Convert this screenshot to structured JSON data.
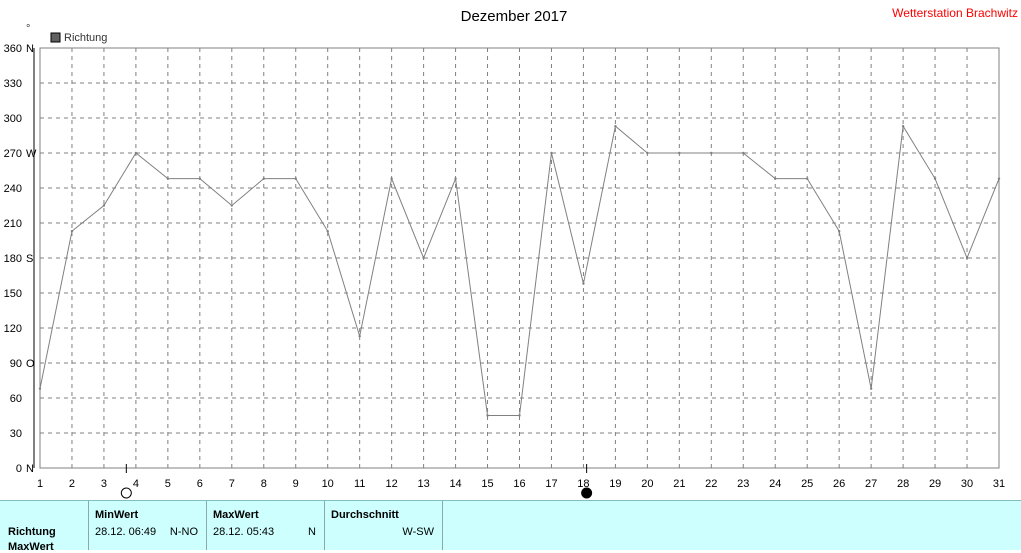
{
  "header": {
    "title": "Dezember 2017",
    "station": "Wetterstation Brachwitz",
    "station_color": "#ff0000"
  },
  "legend": {
    "label": "Richtung",
    "swatch_color": "#606060",
    "degree_mark": "°"
  },
  "chart_data": {
    "type": "line",
    "title": "Dezember 2017",
    "x": [
      1,
      2,
      3,
      4,
      5,
      6,
      7,
      8,
      9,
      10,
      11,
      12,
      13,
      14,
      15,
      16,
      17,
      18,
      19,
      20,
      21,
      22,
      23,
      24,
      25,
      26,
      27,
      28,
      29,
      30,
      31
    ],
    "series": [
      {
        "name": "Richtung",
        "color": "#808080",
        "values": [
          68,
          203,
          225,
          270,
          248,
          248,
          225,
          248,
          248,
          203,
          113,
          248,
          180,
          248,
          45,
          45,
          270,
          158,
          293,
          270,
          270,
          270,
          270,
          248,
          248,
          203,
          68,
          293,
          248,
          180,
          248
        ]
      }
    ],
    "xlim": [
      1,
      31
    ],
    "ylim": [
      0,
      360
    ],
    "x_ticks": [
      "1",
      "2",
      "3",
      "4",
      "5",
      "6",
      "7",
      "8",
      "9",
      "10",
      "11",
      "12",
      "13",
      "14",
      "15",
      "16",
      "17",
      "18",
      "19",
      "20",
      "21",
      "22",
      "23",
      "24",
      "25",
      "26",
      "27",
      "28",
      "29",
      "30",
      "31"
    ],
    "y_ticks": [
      {
        "value": 0,
        "label": "0",
        "dir": "N"
      },
      {
        "value": 30,
        "label": "30",
        "dir": ""
      },
      {
        "value": 60,
        "label": "60",
        "dir": ""
      },
      {
        "value": 90,
        "label": "90",
        "dir": "O"
      },
      {
        "value": 120,
        "label": "120",
        "dir": ""
      },
      {
        "value": 150,
        "label": "150",
        "dir": ""
      },
      {
        "value": 180,
        "label": "180",
        "dir": "S"
      },
      {
        "value": 210,
        "label": "210",
        "dir": ""
      },
      {
        "value": 240,
        "label": "240",
        "dir": ""
      },
      {
        "value": 270,
        "label": "270",
        "dir": "W"
      },
      {
        "value": 300,
        "label": "300",
        "dir": ""
      },
      {
        "value": 330,
        "label": "330",
        "dir": ""
      },
      {
        "value": 360,
        "label": "360",
        "dir": "N"
      }
    ],
    "grid": true,
    "moon_phases": [
      {
        "day": 3.7,
        "phase": "full"
      },
      {
        "day": 18.1,
        "phase": "new"
      }
    ]
  },
  "stats": {
    "row_label": "Richtung",
    "row_label_2": "MaxWert",
    "min": {
      "header": "MinWert",
      "time": "28.12.  06:49",
      "value": "N-NO"
    },
    "max": {
      "header": "MaxWert",
      "time": "28.12.  05:43",
      "value": "N"
    },
    "avg": {
      "header": "Durchschnitt",
      "value": "W-SW"
    }
  }
}
